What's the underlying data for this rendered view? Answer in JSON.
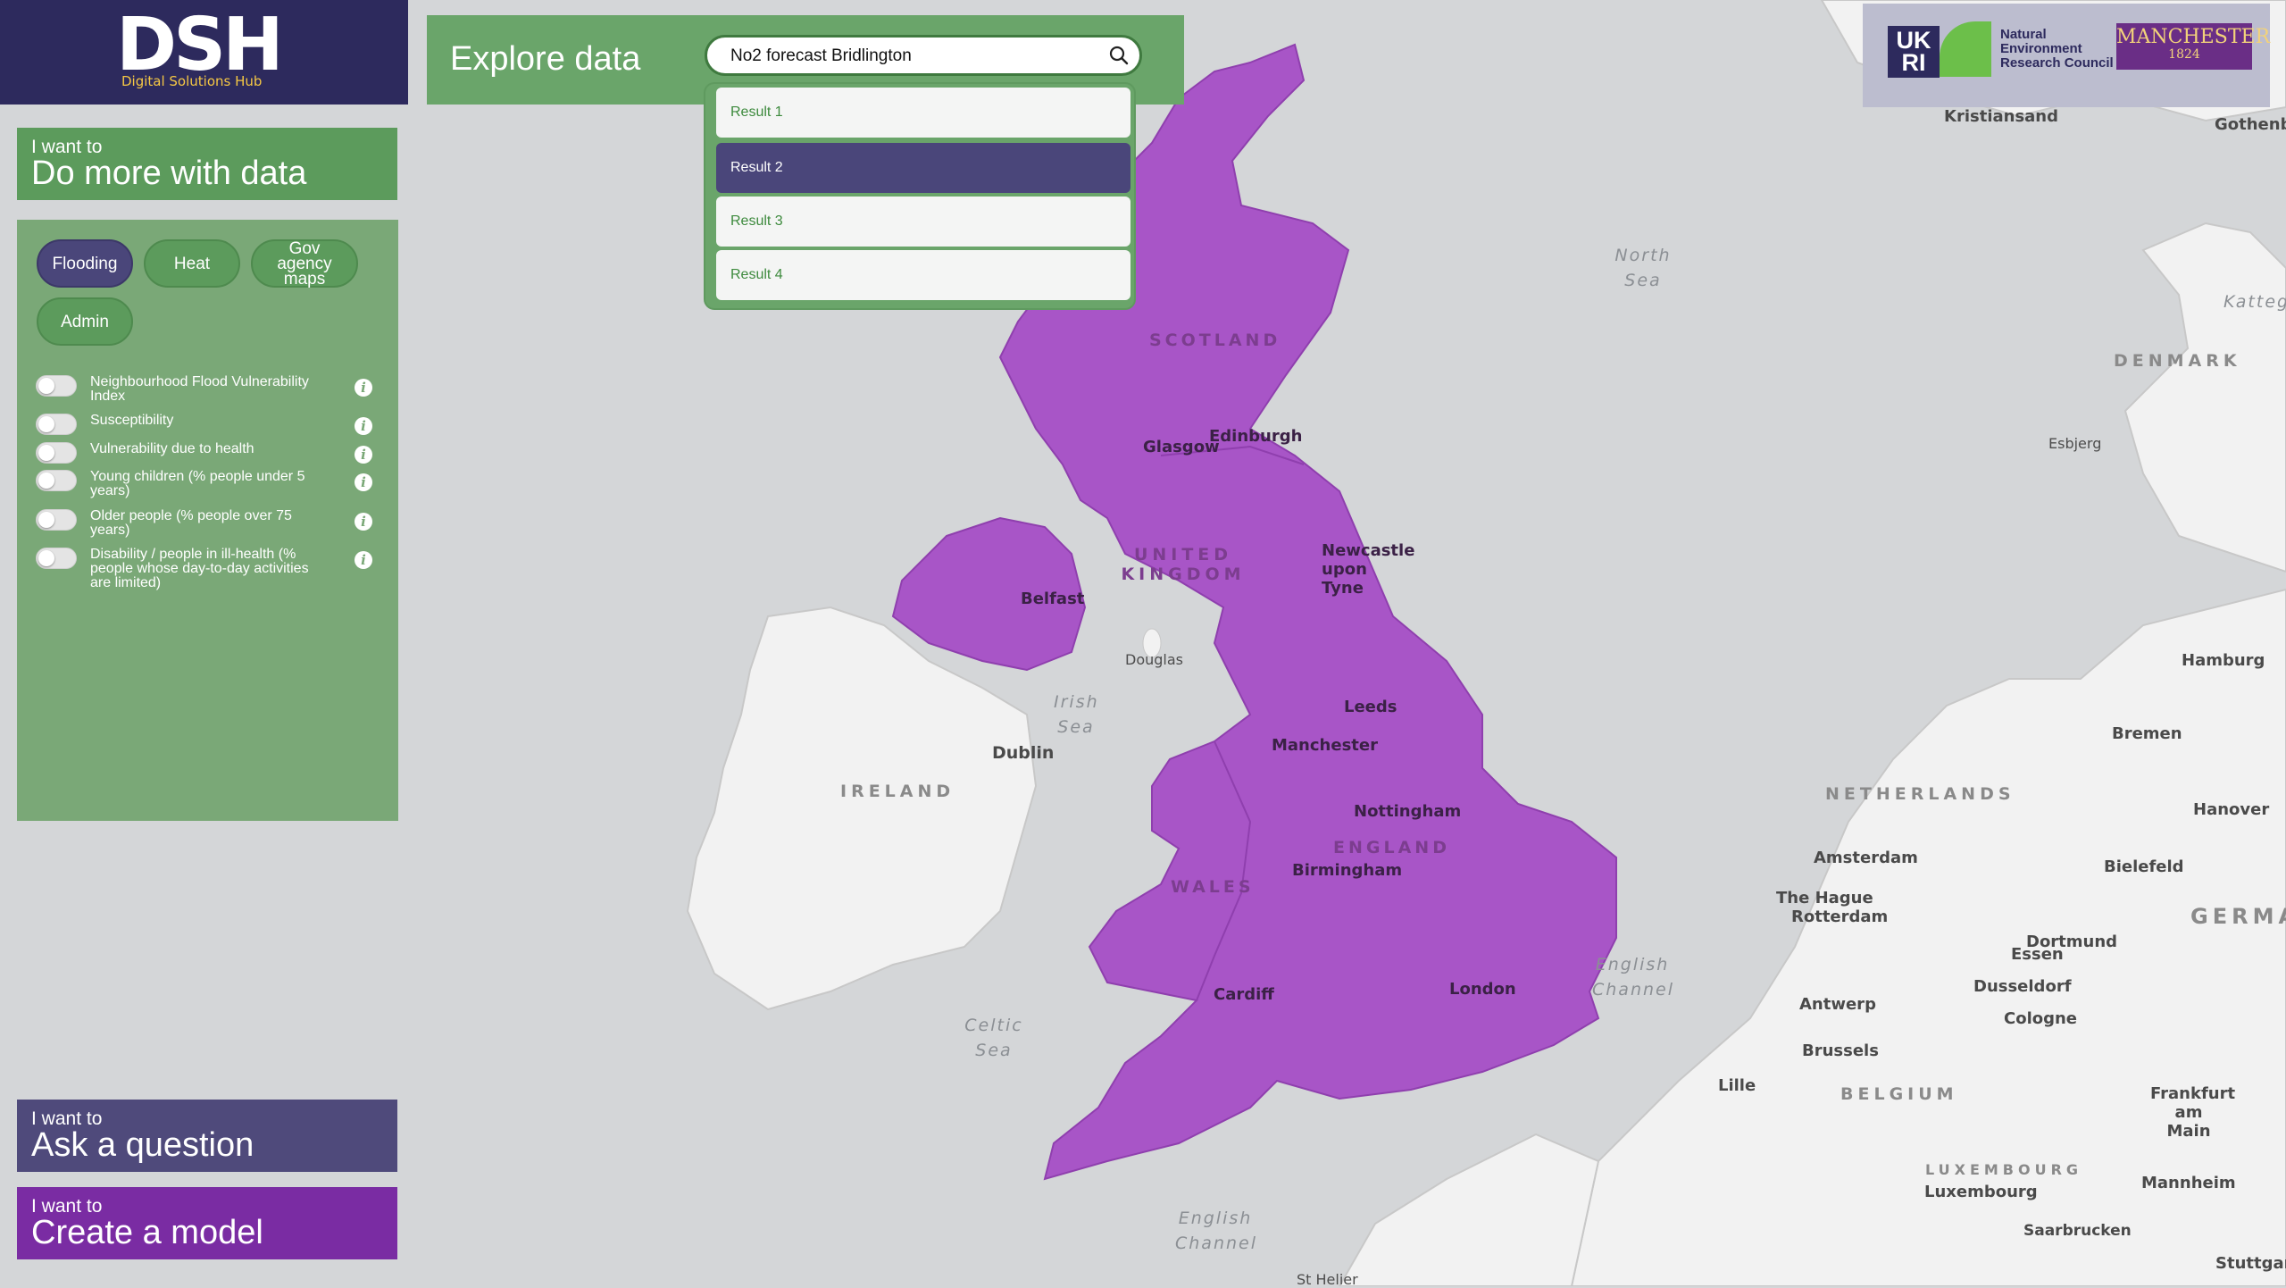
{
  "brand": {
    "logo": "DSH",
    "subtitle": "Digital Solutions Hub"
  },
  "actions": {
    "do_more": {
      "prefix": "I want to",
      "label": "Do more with data"
    },
    "ask": {
      "prefix": "I want to",
      "label": "Ask a question"
    },
    "create": {
      "prefix": "I want to",
      "label": "Create a model"
    }
  },
  "categories": [
    {
      "label": "Flooding",
      "active": true
    },
    {
      "label": "Heat",
      "active": false
    },
    {
      "label": "Gov agency maps",
      "active": false
    },
    {
      "label": "Admin",
      "active": false
    }
  ],
  "layers": [
    {
      "label": "Neighbourhood Flood Vulnerability Index",
      "enabled": false
    },
    {
      "label": "Susceptibility",
      "enabled": false
    },
    {
      "label": "Vulnerability due to health",
      "enabled": false
    },
    {
      "label": " Young children (% people under 5 years)",
      "enabled": false
    },
    {
      "label": "Older people (% people over 75 years)",
      "enabled": false
    },
    {
      "label": " Disability / people in ill-health (% people whose day-to-day activities are limited)",
      "enabled": false
    }
  ],
  "info_icon_glyph": "i",
  "explore": {
    "title": "Explore data",
    "search_value": "No2 forecast Bridlington",
    "results": [
      "Result 1",
      "Result 2",
      "Result 3",
      "Result 4"
    ],
    "selected_result": "Result 2"
  },
  "partners": {
    "ukri": "UK RI",
    "nerc": "Natural Environment Research Council",
    "manchester": "MANCHESTER",
    "manchester_year": "1824"
  },
  "map_labels": {
    "cities_uk": [
      "Glasgow",
      "Edinburgh",
      "Newcastle upon Tyne",
      "Belfast",
      "Leeds",
      "Manchester",
      "Nottingham",
      "Birmingham",
      "Cardiff",
      "London"
    ],
    "cities_other": [
      "Kristiansand",
      "Gothenbu",
      "Esbjerg",
      "Hamburg",
      "Bremen",
      "Hanover",
      "Amsterdam",
      "Bielefeld",
      "The Hague",
      "Rotterdam",
      "Dortmund",
      "Essen",
      "Dusseldorf",
      "Antwerp",
      "Cologne",
      "Brussels",
      "Lille",
      "Frankfurt am Main",
      "Luxembourg",
      "Mannheim",
      "Saarbrucken",
      "Stuttgart",
      "Dublin",
      "Douglas",
      "St Helier"
    ],
    "countries": [
      "IRELAND",
      "DENMARK",
      "NETHERLANDS",
      "BELGIUM",
      "LUXEMBOURG",
      "GERMA",
      "UNITED KINGDOM"
    ],
    "regions": [
      "SCOTLAND",
      "ENGLAND",
      "WALES"
    ],
    "seas": [
      "North Sea",
      "Irish Sea",
      "Celtic Sea",
      "English Channel",
      "English Channel",
      "Katteg"
    ]
  },
  "colors": {
    "uk_fill": "#a855c7",
    "uk_border": "#8f3fae",
    "sea": "#d4d6d8",
    "land": "#f2f2f2",
    "panel_green": "#7aa877",
    "accent_purple": "#4a467a"
  }
}
